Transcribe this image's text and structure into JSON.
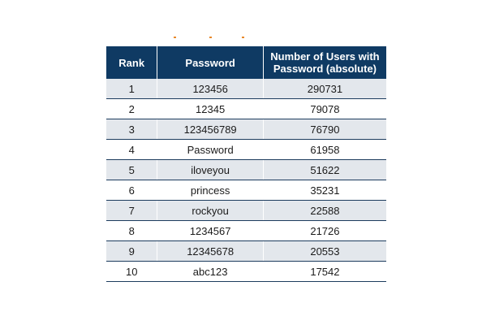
{
  "table": {
    "headers": {
      "rank": "Rank",
      "password": "Password",
      "users": "Number of Users with Password (absolute)"
    },
    "rows": [
      {
        "rank": "1",
        "password": "123456",
        "users": "290731"
      },
      {
        "rank": "2",
        "password": "12345",
        "users": "79078"
      },
      {
        "rank": "3",
        "password": "123456789",
        "users": "76790"
      },
      {
        "rank": "4",
        "password": "Password",
        "users": "61958"
      },
      {
        "rank": "5",
        "password": "iloveyou",
        "users": "51622"
      },
      {
        "rank": "6",
        "password": "princess",
        "users": "35231"
      },
      {
        "rank": "7",
        "password": "rockyou",
        "users": "22588"
      },
      {
        "rank": "8",
        "password": "1234567",
        "users": "21726"
      },
      {
        "rank": "9",
        "password": "12345678",
        "users": "20553"
      },
      {
        "rank": "10",
        "password": "abc123",
        "users": "17542"
      }
    ]
  },
  "colors": {
    "header_bg": "#0f3a63",
    "header_text": "#ffffff",
    "shaded_row": "#e3e7ec",
    "rule": "#1d3c5e",
    "accent_marks": "#e8892b"
  }
}
